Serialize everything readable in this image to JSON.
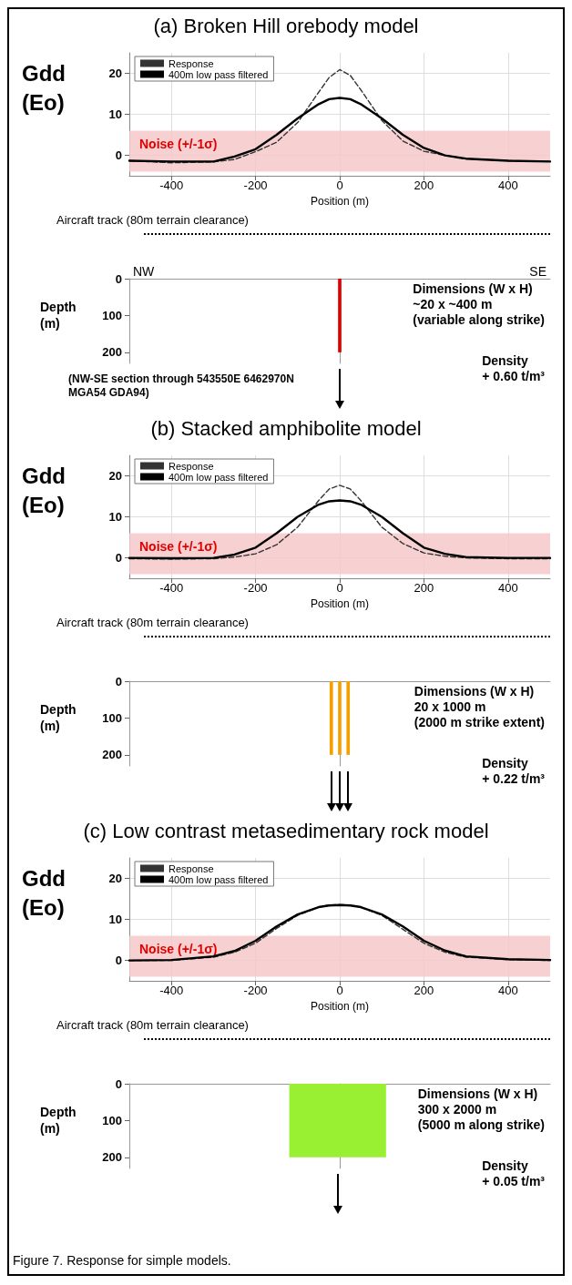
{
  "chart_data": [
    {
      "type": "line",
      "title": "(a) Broken Hill orebody model",
      "xlabel": "Position (m)",
      "ylabel": "Gdd\n(Eo)",
      "x": [
        -500,
        -400,
        -300,
        -250,
        -200,
        -150,
        -100,
        -50,
        -25,
        0,
        25,
        50,
        100,
        150,
        200,
        250,
        300,
        400,
        500
      ],
      "series": [
        {
          "name": "Response",
          "color": "#333333",
          "line_style": "dashed",
          "values": [
            -1.3,
            -1.8,
            -1.6,
            -1.0,
            0.9,
            3.2,
            8,
            15.4,
            19,
            20.9,
            19.5,
            16,
            8.5,
            3.5,
            1,
            0,
            -0.8,
            -1.3,
            -1.5
          ]
        },
        {
          "name": "400m low pass filtered",
          "color": "#000000",
          "line_style": "solid",
          "values": [
            -1.3,
            -1.5,
            -1.5,
            -0.3,
            1.5,
            5,
            9,
            12.5,
            13.7,
            14,
            13.7,
            12.5,
            9,
            5,
            1.8,
            0,
            -0.8,
            -1.3,
            -1.5
          ]
        }
      ],
      "xlim": [
        -500,
        500
      ],
      "xticks": [
        -400,
        -200,
        0,
        200,
        400
      ],
      "ylim": [
        -5,
        25
      ],
      "yticks": [
        0,
        10,
        20
      ],
      "grid": true,
      "legend": "top left",
      "bands": [
        {
          "axis": "y",
          "from": -4,
          "to": 6,
          "label": "Noise (+/-1σ)",
          "color": "#f6c9c9"
        }
      ],
      "annotations": [
        "Aircraft track (80m terrain clearance)"
      ]
    },
    {
      "type": "histogram",
      "ylabel": "Depth\n(m)",
      "subtitle": "(NW-SE section through 543550E 6462970N\nMGA54 GDA94)",
      "bins": [
        -4,
        4
      ],
      "values": [
        200
      ],
      "color": "#e00000",
      "xlim": [
        -500,
        500
      ],
      "ylim": [
        230,
        0
      ],
      "yticks": [
        0,
        100,
        200
      ],
      "tick_labels": "y",
      "annotations": [
        "NW",
        "SE",
        "Dimensions (W x H)\n~20 x ~400 m\n(variable along strike)",
        "Density\n+ 0.60 t/m³"
      ]
    },
    {
      "type": "line",
      "title": "(b) Stacked amphibolite model",
      "xlabel": "Position (m)",
      "ylabel": "Gdd\n(Eo)",
      "x": [
        -500,
        -400,
        -300,
        -250,
        -200,
        -150,
        -100,
        -50,
        -25,
        0,
        25,
        50,
        100,
        150,
        200,
        250,
        300,
        400,
        500
      ],
      "series": [
        {
          "name": "Response",
          "color": "#333333",
          "line_style": "dashed",
          "values": [
            -0.2,
            -0.3,
            -0.2,
            0.2,
            1,
            3.2,
            7.5,
            14,
            16.8,
            17.7,
            16.8,
            14,
            7.5,
            3.5,
            1.2,
            0.4,
            0,
            -0.2,
            -0.2
          ]
        },
        {
          "name": "400m low pass filtered",
          "color": "#000000",
          "line_style": "solid",
          "values": [
            0,
            -0.1,
            0,
            0.8,
            2.5,
            6,
            10,
            13,
            13.8,
            14,
            13.8,
            13,
            10,
            6,
            2.5,
            1,
            0.2,
            0,
            0
          ]
        }
      ],
      "xlim": [
        -500,
        500
      ],
      "xticks": [
        -400,
        -200,
        0,
        200,
        400
      ],
      "ylim": [
        -5,
        25
      ],
      "yticks": [
        0,
        10,
        20
      ],
      "grid": true,
      "legend": "top left",
      "bands": [
        {
          "axis": "y",
          "from": -4,
          "to": 6,
          "label": "Noise (+/-1σ)",
          "color": "#f6c9c9"
        }
      ],
      "annotations": [
        "Aircraft track (80m terrain clearance)"
      ]
    },
    {
      "type": "histogram",
      "ylabel": "Depth\n(m)",
      "bins": [
        -24,
        -16,
        -4,
        4,
        16,
        24
      ],
      "values": [
        200,
        null,
        200,
        null,
        200
      ],
      "color": "#f5a000",
      "xlim": [
        -500,
        500
      ],
      "ylim": [
        230,
        0
      ],
      "yticks": [
        0,
        100,
        200
      ],
      "tick_labels": "y",
      "annotations": [
        "Dimensions (W x H)\n20 x 1000 m\n(2000 m strike extent)",
        "Density\n+ 0.22 t/m³"
      ]
    },
    {
      "type": "line",
      "title": "(c) Low contrast metasedimentary rock model",
      "xlabel": "Position (m)",
      "ylabel": "Gdd\n(Eo)",
      "x": [
        -500,
        -400,
        -300,
        -250,
        -200,
        -150,
        -100,
        -50,
        -25,
        0,
        25,
        50,
        100,
        150,
        200,
        250,
        300,
        400,
        500
      ],
      "series": [
        {
          "name": "Response",
          "color": "#333333",
          "line_style": "dashed",
          "values": [
            0,
            0,
            0.8,
            2,
            4.2,
            7.8,
            11,
            13,
            13.5,
            13.6,
            13.5,
            13,
            11,
            7.6,
            4.2,
            2,
            0.8,
            0.2,
            0
          ]
        },
        {
          "name": "400m low pass filtered",
          "color": "#000000",
          "line_style": "solid",
          "values": [
            0,
            0.1,
            1,
            2.3,
            4.8,
            8.3,
            11.2,
            13,
            13.4,
            13.5,
            13.4,
            13,
            11.2,
            8.3,
            4.8,
            2.4,
            1,
            0.3,
            0.1
          ]
        }
      ],
      "xlim": [
        -500,
        500
      ],
      "xticks": [
        -400,
        -200,
        0,
        200,
        400
      ],
      "ylim": [
        -5,
        25
      ],
      "yticks": [
        0,
        10,
        20
      ],
      "grid": true,
      "legend": "top left",
      "bands": [
        {
          "axis": "y",
          "from": -4,
          "to": 6,
          "label": "Noise (+/-1σ)",
          "color": "#f6c9c9"
        }
      ],
      "annotations": [
        "Aircraft track (80m terrain clearance)"
      ]
    },
    {
      "type": "histogram",
      "ylabel": "Depth\n(m)",
      "bins": [
        -120,
        110
      ],
      "values": [
        200
      ],
      "color": "#99f033",
      "xlim": [
        -500,
        500
      ],
      "ylim": [
        230,
        0
      ],
      "yticks": [
        0,
        100,
        200
      ],
      "tick_labels": "y",
      "annotations": [
        "Dimensions (W x H)\n300 x 2000 m\n(5000 m along strike)",
        "Density\n+ 0.05 t/m³"
      ]
    },
    {
      "type": "other",
      "title": "Figure 7. Response for simple models."
    }
  ]
}
